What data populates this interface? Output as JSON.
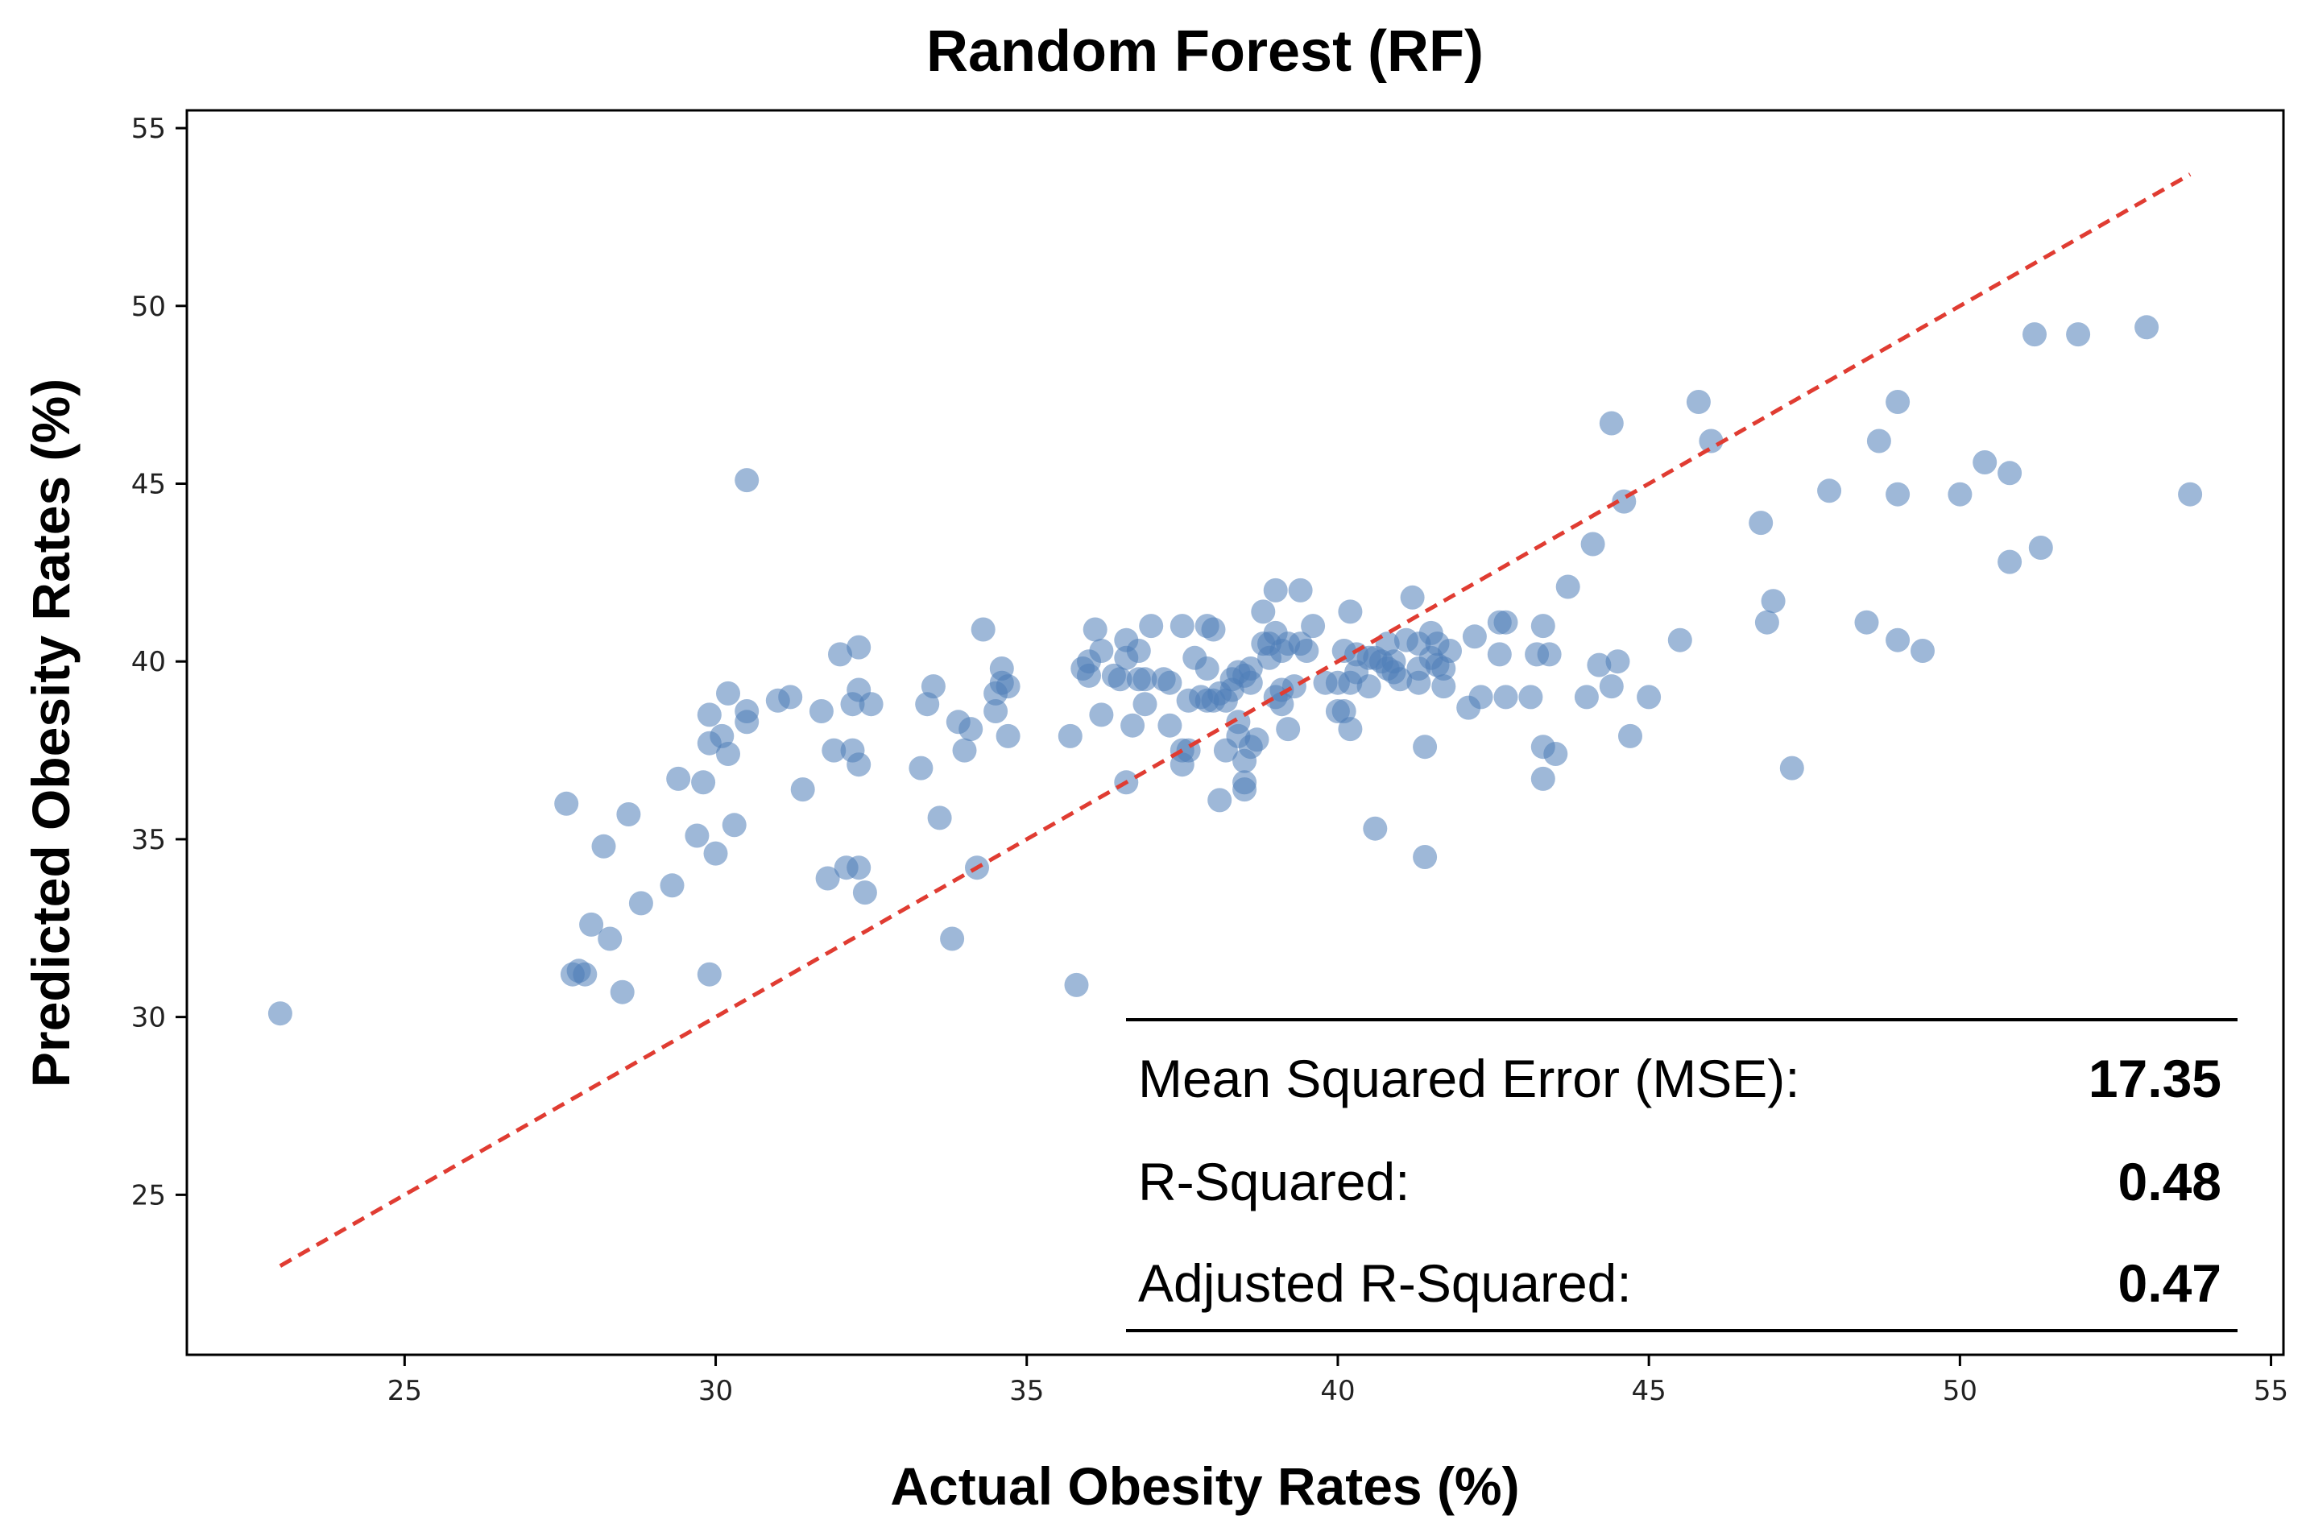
{
  "chart_data": {
    "type": "scatter",
    "title": "Random Forest (RF)",
    "xlabel": "Actual Obesity Rates (%)",
    "ylabel": "Predicted Obesity Rates (%)",
    "xlim": [
      21.5,
      55.2
    ],
    "ylim": [
      20.5,
      55.5
    ],
    "xticks": [
      25,
      30,
      35,
      40,
      45,
      50,
      55
    ],
    "yticks": [
      25,
      30,
      35,
      40,
      45,
      50,
      55
    ],
    "grid": false,
    "point_color": "#4f7db8",
    "reference_line": {
      "from": [
        23.0,
        23.0
      ],
      "to": [
        53.7,
        53.7
      ],
      "color": "#e03c32",
      "style": "dashed"
    },
    "stats": [
      {
        "label": "Mean Squared Error (MSE):",
        "value": "17.35"
      },
      {
        "label": "R-Squared:",
        "value": "0.48"
      },
      {
        "label": "Adjusted R-Squared:",
        "value": "0.47"
      }
    ],
    "points": [
      [
        23.0,
        30.1
      ],
      [
        27.6,
        36.0
      ],
      [
        27.7,
        31.2
      ],
      [
        27.8,
        31.3
      ],
      [
        27.9,
        31.2
      ],
      [
        28.0,
        32.6
      ],
      [
        28.2,
        34.8
      ],
      [
        28.3,
        32.2
      ],
      [
        28.5,
        30.7
      ],
      [
        28.6,
        35.7
      ],
      [
        28.8,
        33.2
      ],
      [
        29.3,
        33.7
      ],
      [
        29.4,
        36.7
      ],
      [
        29.7,
        35.1
      ],
      [
        29.8,
        36.6
      ],
      [
        29.9,
        37.7
      ],
      [
        29.9,
        38.5
      ],
      [
        29.9,
        31.2
      ],
      [
        30.0,
        34.6
      ],
      [
        30.1,
        37.9
      ],
      [
        30.2,
        37.4
      ],
      [
        30.2,
        39.1
      ],
      [
        30.3,
        35.4
      ],
      [
        30.5,
        38.3
      ],
      [
        30.5,
        38.6
      ],
      [
        30.5,
        45.1
      ],
      [
        31.0,
        38.9
      ],
      [
        31.2,
        39.0
      ],
      [
        31.4,
        36.4
      ],
      [
        31.7,
        38.6
      ],
      [
        31.8,
        33.9
      ],
      [
        31.9,
        37.5
      ],
      [
        32.0,
        40.2
      ],
      [
        32.1,
        34.2
      ],
      [
        32.2,
        37.5
      ],
      [
        32.2,
        38.8
      ],
      [
        32.3,
        37.1
      ],
      [
        32.3,
        39.2
      ],
      [
        32.3,
        40.4
      ],
      [
        32.3,
        34.2
      ],
      [
        32.4,
        33.5
      ],
      [
        32.5,
        38.8
      ],
      [
        33.3,
        37.0
      ],
      [
        33.4,
        38.8
      ],
      [
        33.5,
        39.3
      ],
      [
        33.6,
        35.6
      ],
      [
        33.8,
        32.2
      ],
      [
        33.9,
        38.3
      ],
      [
        34.0,
        37.5
      ],
      [
        34.1,
        38.1
      ],
      [
        34.2,
        34.2
      ],
      [
        34.3,
        40.9
      ],
      [
        34.5,
        39.1
      ],
      [
        34.5,
        38.6
      ],
      [
        34.6,
        39.8
      ],
      [
        34.6,
        39.4
      ],
      [
        34.7,
        39.3
      ],
      [
        34.7,
        37.9
      ],
      [
        35.7,
        37.9
      ],
      [
        35.8,
        30.9
      ],
      [
        35.9,
        39.8
      ],
      [
        36.0,
        39.6
      ],
      [
        36.0,
        40.0
      ],
      [
        36.1,
        40.9
      ],
      [
        36.2,
        40.3
      ],
      [
        36.2,
        38.5
      ],
      [
        36.4,
        39.6
      ],
      [
        36.5,
        39.5
      ],
      [
        36.6,
        36.6
      ],
      [
        36.6,
        40.6
      ],
      [
        36.6,
        40.1
      ],
      [
        36.7,
        38.2
      ],
      [
        36.8,
        39.5
      ],
      [
        36.8,
        40.3
      ],
      [
        36.9,
        38.8
      ],
      [
        36.9,
        39.5
      ],
      [
        37.0,
        41.0
      ],
      [
        37.2,
        39.5
      ],
      [
        37.3,
        39.4
      ],
      [
        37.3,
        38.2
      ],
      [
        37.5,
        37.1
      ],
      [
        37.5,
        37.5
      ],
      [
        37.5,
        41.0
      ],
      [
        37.6,
        38.9
      ],
      [
        37.6,
        37.5
      ],
      [
        37.7,
        40.1
      ],
      [
        37.8,
        39.0
      ],
      [
        37.9,
        38.9
      ],
      [
        37.9,
        41.0
      ],
      [
        37.9,
        39.8
      ],
      [
        38.0,
        38.9
      ],
      [
        38.0,
        40.9
      ],
      [
        38.1,
        39.1
      ],
      [
        38.1,
        36.1
      ],
      [
        38.2,
        37.5
      ],
      [
        38.2,
        38.9
      ],
      [
        38.3,
        39.2
      ],
      [
        38.3,
        39.5
      ],
      [
        38.4,
        39.7
      ],
      [
        38.4,
        38.3
      ],
      [
        38.4,
        37.9
      ],
      [
        38.5,
        39.6
      ],
      [
        38.5,
        37.2
      ],
      [
        38.5,
        36.4
      ],
      [
        38.5,
        36.6
      ],
      [
        38.6,
        39.8
      ],
      [
        38.6,
        37.6
      ],
      [
        38.6,
        39.4
      ],
      [
        38.7,
        37.8
      ],
      [
        38.8,
        40.5
      ],
      [
        38.8,
        41.4
      ],
      [
        38.9,
        40.5
      ],
      [
        38.9,
        40.1
      ],
      [
        39.0,
        42.0
      ],
      [
        39.0,
        40.8
      ],
      [
        39.0,
        39.0
      ],
      [
        39.1,
        38.8
      ],
      [
        39.1,
        39.2
      ],
      [
        39.1,
        40.3
      ],
      [
        39.2,
        40.5
      ],
      [
        39.2,
        38.1
      ],
      [
        39.3,
        39.3
      ],
      [
        39.4,
        42.0
      ],
      [
        39.4,
        40.5
      ],
      [
        39.5,
        40.3
      ],
      [
        39.6,
        41.0
      ],
      [
        39.8,
        39.4
      ],
      [
        40.0,
        39.4
      ],
      [
        40.0,
        38.6
      ],
      [
        40.1,
        38.6
      ],
      [
        40.1,
        40.3
      ],
      [
        40.2,
        39.4
      ],
      [
        40.2,
        41.4
      ],
      [
        40.2,
        38.1
      ],
      [
        40.3,
        39.7
      ],
      [
        40.3,
        40.2
      ],
      [
        40.5,
        40.1
      ],
      [
        40.5,
        39.3
      ],
      [
        40.6,
        40.1
      ],
      [
        40.6,
        35.3
      ],
      [
        40.7,
        40.0
      ],
      [
        40.8,
        40.5
      ],
      [
        40.8,
        39.8
      ],
      [
        40.9,
        40.0
      ],
      [
        40.9,
        39.7
      ],
      [
        41.0,
        39.5
      ],
      [
        41.1,
        40.6
      ],
      [
        41.2,
        41.8
      ],
      [
        41.3,
        39.8
      ],
      [
        41.3,
        40.5
      ],
      [
        41.3,
        39.4
      ],
      [
        41.4,
        37.6
      ],
      [
        41.4,
        34.5
      ],
      [
        41.5,
        40.8
      ],
      [
        41.5,
        40.1
      ],
      [
        41.6,
        39.9
      ],
      [
        41.6,
        40.5
      ],
      [
        41.7,
        39.8
      ],
      [
        41.7,
        39.3
      ],
      [
        41.8,
        40.3
      ],
      [
        42.1,
        38.7
      ],
      [
        42.2,
        40.7
      ],
      [
        42.3,
        39.0
      ],
      [
        42.6,
        40.2
      ],
      [
        42.6,
        41.1
      ],
      [
        42.7,
        41.1
      ],
      [
        42.7,
        39.0
      ],
      [
        43.1,
        39.0
      ],
      [
        43.2,
        40.2
      ],
      [
        43.3,
        41.0
      ],
      [
        43.3,
        37.6
      ],
      [
        43.3,
        36.7
      ],
      [
        43.4,
        40.2
      ],
      [
        43.5,
        37.4
      ],
      [
        43.7,
        42.1
      ],
      [
        44.0,
        39.0
      ],
      [
        44.1,
        43.3
      ],
      [
        44.2,
        39.9
      ],
      [
        44.4,
        46.7
      ],
      [
        44.4,
        39.3
      ],
      [
        44.5,
        40.0
      ],
      [
        44.6,
        44.5
      ],
      [
        44.7,
        37.9
      ],
      [
        45.0,
        39.0
      ],
      [
        45.5,
        40.6
      ],
      [
        45.8,
        47.3
      ],
      [
        46.0,
        46.2
      ],
      [
        46.8,
        43.9
      ],
      [
        46.9,
        41.1
      ],
      [
        47.0,
        41.7
      ],
      [
        47.3,
        37.0
      ],
      [
        47.9,
        44.8
      ],
      [
        48.5,
        41.1
      ],
      [
        48.7,
        46.2
      ],
      [
        49.0,
        47.3
      ],
      [
        49.0,
        44.7
      ],
      [
        49.0,
        40.6
      ],
      [
        49.4,
        40.3
      ],
      [
        50.0,
        44.7
      ],
      [
        50.4,
        45.6
      ],
      [
        50.8,
        45.3
      ],
      [
        50.8,
        42.8
      ],
      [
        51.2,
        49.2
      ],
      [
        51.3,
        43.2
      ],
      [
        51.9,
        49.2
      ],
      [
        53.0,
        49.4
      ],
      [
        53.7,
        44.7
      ]
    ]
  }
}
